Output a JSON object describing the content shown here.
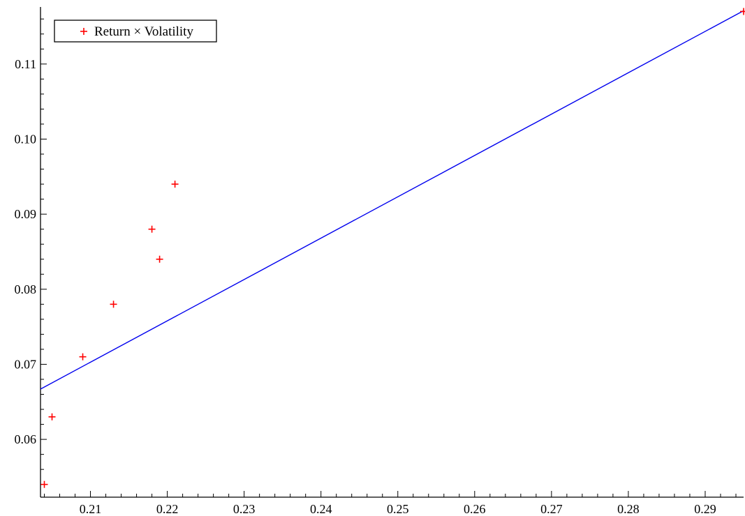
{
  "chart_data": {
    "type": "scatter",
    "title": "",
    "xlabel": "",
    "ylabel": "",
    "xlim": [
      0.2035,
      0.295
    ],
    "ylim": [
      0.0523,
      0.1176
    ],
    "x_ticks": [
      0.21,
      0.22,
      0.23,
      0.24,
      0.25,
      0.26,
      0.27,
      0.28,
      0.29
    ],
    "x_tick_labels": [
      "0.21",
      "0.22",
      "0.23",
      "0.24",
      "0.25",
      "0.26",
      "0.27",
      "0.28",
      "0.29"
    ],
    "y_ticks": [
      0.06,
      0.07,
      0.08,
      0.09,
      0.1,
      0.11
    ],
    "y_tick_labels": [
      "0.06",
      "0.07",
      "0.08",
      "0.09",
      "0.10",
      "0.11"
    ],
    "grid": false,
    "legend": {
      "position": "top-left",
      "entries": [
        {
          "label": "Return × Volatility",
          "marker": "+",
          "color": "#ff0000"
        }
      ]
    },
    "series": [
      {
        "name": "Return × Volatility",
        "kind": "scatter",
        "marker": "+",
        "color": "#ff0000",
        "points": [
          {
            "x": 0.204,
            "y": 0.054
          },
          {
            "x": 0.205,
            "y": 0.063
          },
          {
            "x": 0.209,
            "y": 0.071
          },
          {
            "x": 0.213,
            "y": 0.078
          },
          {
            "x": 0.218,
            "y": 0.088
          },
          {
            "x": 0.219,
            "y": 0.084
          },
          {
            "x": 0.221,
            "y": 0.094
          },
          {
            "x": 0.295,
            "y": 0.117
          }
        ]
      },
      {
        "kind": "line",
        "color": "#0000ee",
        "points": [
          {
            "x": 0.2035,
            "y": 0.0667
          },
          {
            "x": 0.295,
            "y": 0.1171
          }
        ]
      }
    ]
  }
}
